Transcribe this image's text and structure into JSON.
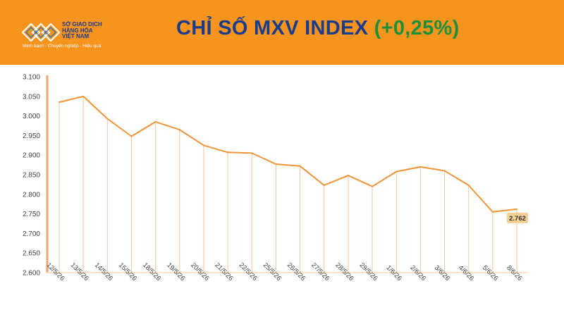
{
  "header": {
    "logo_name": "Sở giao dịch\nHàng hóa\nViệt Nam",
    "logo_tagline": "Minh bạch - Chuyên nghiệp - Hiệu quả",
    "title_main": "CHỈ SỐ MXV INDEX",
    "title_change": "(+0,25%)",
    "colors": {
      "header_bg": "#f7941d",
      "title": "#1a3c8c",
      "change": "#1c8f3a"
    }
  },
  "chart_data": {
    "type": "line",
    "title": "",
    "xlabel": "",
    "ylabel": "",
    "ylim": [
      2600,
      3100
    ],
    "yticks": [
      "2.600",
      "2.650",
      "2.700",
      "2.750",
      "2.800",
      "2.850",
      "2.900",
      "2.950",
      "3.000",
      "3.050",
      "3.100"
    ],
    "categories": [
      "12/5/26",
      "13/5/26",
      "14/5/26",
      "15/5/26",
      "18/5/26",
      "19/5/26",
      "20/5/26",
      "21/5/26",
      "22/5/26",
      "25/5/26",
      "26/5/26",
      "27/5/26",
      "28/5/26",
      "29/5/26",
      "1/6/26",
      "2/6/26",
      "3/6/26",
      "4/6/26",
      "5/6/26",
      "8/6/26"
    ],
    "values": [
      3035,
      3050,
      2993,
      2948,
      2985,
      2965,
      2925,
      2907,
      2905,
      2877,
      2872,
      2823,
      2848,
      2820,
      2858,
      2870,
      2860,
      2823,
      2755,
      2762
    ],
    "last_label": "2.762",
    "grid": false,
    "line_color": "#f0943a",
    "drop_line_color": "#f6c4a4",
    "axis_color": "#f0a66a",
    "label_bg": "#f6cf93"
  }
}
